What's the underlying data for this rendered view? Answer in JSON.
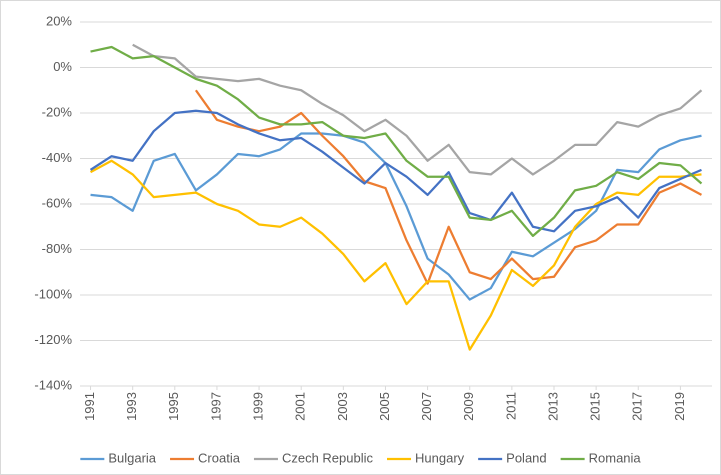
{
  "chart_data": {
    "type": "line",
    "x": [
      1991,
      1992,
      1993,
      1994,
      1995,
      1996,
      1997,
      1998,
      1999,
      2000,
      2001,
      2002,
      2003,
      2004,
      2005,
      2006,
      2007,
      2008,
      2009,
      2010,
      2011,
      2012,
      2013,
      2014,
      2015,
      2016,
      2017,
      2018,
      2019,
      2020
    ],
    "xlim": [
      1990.5,
      2020.5
    ],
    "xticks": [
      1991,
      1993,
      1995,
      1997,
      1999,
      2001,
      2003,
      2005,
      2007,
      2009,
      2011,
      2013,
      2015,
      2017,
      2019
    ],
    "ylim": [
      -140,
      20
    ],
    "yticks": [
      {
        "value": 20,
        "label": "20%"
      },
      {
        "value": 0,
        "label": "0%"
      },
      {
        "value": -20,
        "label": "-20%"
      },
      {
        "value": -40,
        "label": "-40%"
      },
      {
        "value": -60,
        "label": "-60%"
      },
      {
        "value": -80,
        "label": "-80%"
      },
      {
        "value": -100,
        "label": "-100%"
      },
      {
        "value": -120,
        "label": "-120%"
      },
      {
        "value": -140,
        "label": "-140%"
      }
    ],
    "grid": true,
    "legend": "bottom",
    "series": [
      {
        "name": "Bulgaria",
        "color": "#5b9bd5",
        "values": [
          -56,
          -57,
          -63,
          -41,
          -38,
          -54,
          -47,
          -38,
          -39,
          -36,
          -29,
          -29,
          -30,
          -33,
          -42,
          -61,
          -84,
          -91,
          -102,
          -97,
          -81,
          -83,
          -77,
          -71,
          -63,
          -45,
          -46,
          -36,
          -32,
          -30
        ]
      },
      {
        "name": "Croatia",
        "color": "#ed7d31",
        "values": [
          null,
          null,
          null,
          null,
          null,
          -10,
          -23,
          -26,
          -28,
          -26,
          -20,
          -30,
          -39,
          -50,
          -53,
          -76,
          -95,
          -70,
          -90,
          -93,
          -84,
          -93,
          -92,
          -79,
          -76,
          -69,
          -69,
          -55,
          -51,
          -56
        ]
      },
      {
        "name": "Czech Republic",
        "color": "#a5a5a5",
        "values": [
          null,
          null,
          10,
          5,
          4,
          -4,
          -5,
          -6,
          -5,
          -8,
          -10,
          -16,
          -21,
          -28,
          -23,
          -30,
          -41,
          -34,
          -46,
          -47,
          -40,
          -47,
          -41,
          -34,
          -34,
          -24,
          -26,
          -21,
          -18,
          -10
        ]
      },
      {
        "name": "Hungary",
        "color": "#ffc000",
        "values": [
          -46,
          -41,
          -47,
          -57,
          -56,
          -55,
          -60,
          -63,
          -69,
          -70,
          -66,
          -73,
          -82,
          -94,
          -86,
          -104,
          -94,
          -94,
          -124,
          -109,
          -89,
          -96,
          -87,
          -70,
          -60,
          -55,
          -56,
          -48,
          -48,
          -47
        ]
      },
      {
        "name": "Poland",
        "color": "#4472c4",
        "values": [
          -45,
          -39,
          -41,
          -28,
          -20,
          -19,
          -20,
          -25,
          -29,
          -32,
          -31,
          -37,
          -44,
          -51,
          -42,
          -48,
          -56,
          -46,
          -64,
          -67,
          -55,
          -70,
          -72,
          -63,
          -61,
          -57,
          -66,
          -53,
          -49,
          -45
        ]
      },
      {
        "name": "Romania",
        "color": "#70ad47",
        "values": [
          7,
          9,
          4,
          5,
          0,
          -5,
          -8,
          -14,
          -22,
          -25,
          -25,
          -24,
          -30,
          -31,
          -29,
          -41,
          -48,
          -48,
          -66,
          -67,
          -63,
          -74,
          -66,
          -54,
          -52,
          -46,
          -49,
          -42,
          -43,
          -51
        ]
      }
    ]
  }
}
